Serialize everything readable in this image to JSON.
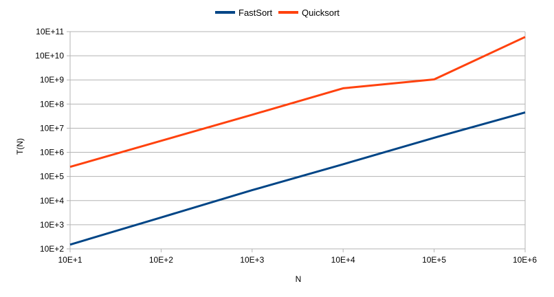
{
  "chart_data": {
    "type": "line",
    "xlabel": "N",
    "ylabel": "T(N)",
    "x_scale": "log",
    "y_scale": "log",
    "x": [
      10,
      100,
      1000,
      10000,
      100000,
      1000000
    ],
    "xlim": [
      10,
      1000000
    ],
    "ylim": [
      100,
      100000000000
    ],
    "x_tick_labels": [
      "10E+1",
      "10E+2",
      "10E+3",
      "10E+4",
      "10E+5",
      "10E+6"
    ],
    "y_tick_labels": [
      "10E+2",
      "10E+3",
      "10E+4",
      "10E+5",
      "10E+6",
      "10E+7",
      "10E+8",
      "10E+9",
      "10E+10",
      "10E+11"
    ],
    "grid": "horizontal",
    "legend_position": "top",
    "series": [
      {
        "name": "FastSort",
        "color": "#004586",
        "values": [
          150,
          2000,
          27000,
          320000,
          4000000,
          45000000
        ]
      },
      {
        "name": "Quicksort",
        "color": "#ff420e",
        "values": [
          250000,
          3000000,
          36000000,
          450000000,
          1050000000,
          60000000000
        ]
      }
    ]
  }
}
